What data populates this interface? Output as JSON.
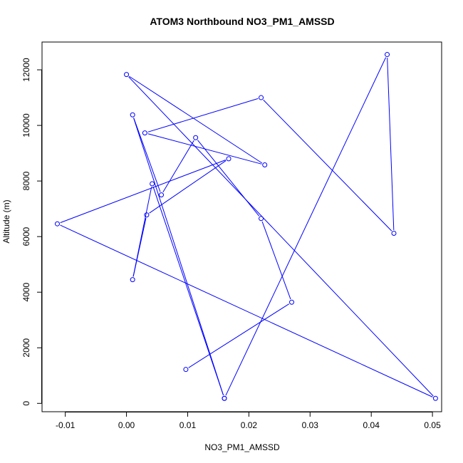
{
  "chart_data": {
    "type": "line",
    "title": "ATOM3 Northbound NO3_PM1_AMSSD",
    "xlabel": "NO3_PM1_AMSSD",
    "ylabel": "Altitude (m)",
    "xlim": [
      -0.0138,
      0.0515
    ],
    "ylim": [
      -300,
      13000
    ],
    "xticks": [
      -0.01,
      0.0,
      0.01,
      0.02,
      0.03,
      0.04,
      0.05
    ],
    "xtick_labels": [
      "-0.01",
      "0.00",
      "0.01",
      "0.02",
      "0.03",
      "0.04",
      "0.05"
    ],
    "yticks": [
      0,
      2000,
      4000,
      6000,
      8000,
      10000,
      12000
    ],
    "ytick_labels": [
      "0",
      "2000",
      "4000",
      "6000",
      "8000",
      "10000",
      "12000"
    ],
    "grid": false,
    "legend": "none",
    "line_color": "#0000ff",
    "marker": "open-circle",
    "series": [
      {
        "x": [
          0.016,
          0.0426,
          0.0437,
          0.022,
          0.003,
          0.0226,
          0.0,
          0.0505,
          -0.0113,
          0.0167,
          0.0033,
          0.001,
          0.0042,
          0.016,
          0.001,
          0.0057,
          0.0113,
          0.022,
          0.027,
          0.0097
        ],
        "y": [
          180,
          12550,
          6120,
          11000,
          9730,
          8580,
          11830,
          180,
          6460,
          8800,
          6780,
          4450,
          7900,
          180,
          10380,
          7500,
          9560,
          6650,
          3640,
          1220
        ]
      }
    ]
  }
}
